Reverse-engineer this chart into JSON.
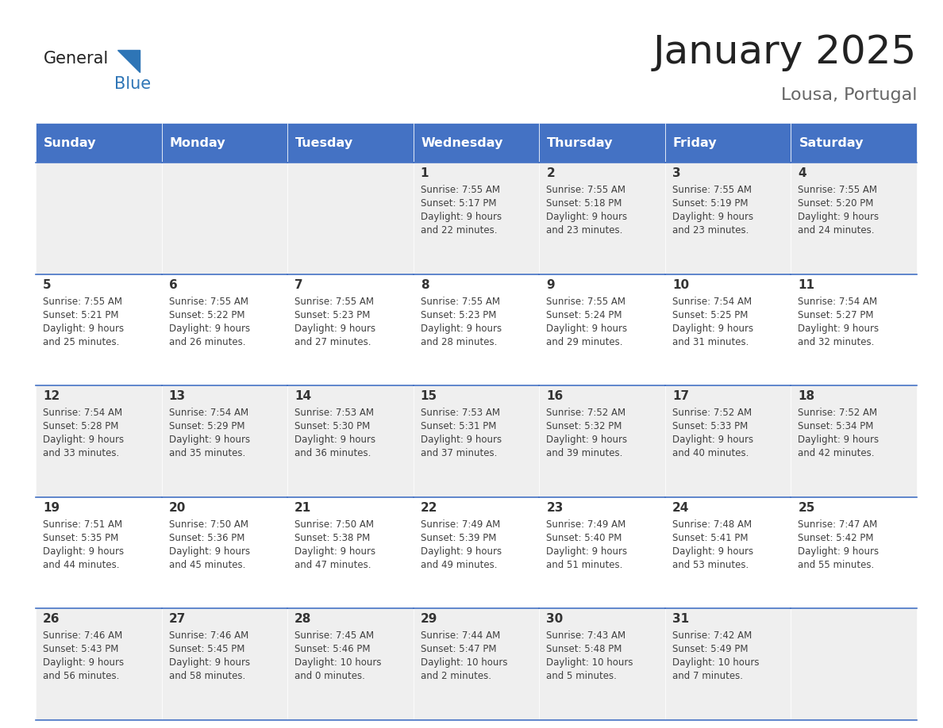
{
  "title": "January 2025",
  "subtitle": "Lousa, Portugal",
  "days_of_week": [
    "Sunday",
    "Monday",
    "Tuesday",
    "Wednesday",
    "Thursday",
    "Friday",
    "Saturday"
  ],
  "header_bg": "#4472C4",
  "header_text": "#FFFFFF",
  "row_bg_even": "#EFEFEF",
  "row_bg_odd": "#FFFFFF",
  "cell_text_color": "#404040",
  "day_num_color": "#333333",
  "border_color": "#4472C4",
  "title_color": "#222222",
  "subtitle_color": "#666666",
  "logo_general_color": "#222222",
  "logo_blue_color": "#2E75B6",
  "weeks": [
    [
      {
        "day": 0,
        "data": null
      },
      {
        "day": 0,
        "data": null
      },
      {
        "day": 0,
        "data": null
      },
      {
        "day": 1,
        "data": {
          "sunrise": "7:55 AM",
          "sunset": "5:17 PM",
          "daylight_h": "9 hours",
          "daylight_m": "and 22 minutes."
        }
      },
      {
        "day": 2,
        "data": {
          "sunrise": "7:55 AM",
          "sunset": "5:18 PM",
          "daylight_h": "9 hours",
          "daylight_m": "and 23 minutes."
        }
      },
      {
        "day": 3,
        "data": {
          "sunrise": "7:55 AM",
          "sunset": "5:19 PM",
          "daylight_h": "9 hours",
          "daylight_m": "and 23 minutes."
        }
      },
      {
        "day": 4,
        "data": {
          "sunrise": "7:55 AM",
          "sunset": "5:20 PM",
          "daylight_h": "9 hours",
          "daylight_m": "and 24 minutes."
        }
      }
    ],
    [
      {
        "day": 5,
        "data": {
          "sunrise": "7:55 AM",
          "sunset": "5:21 PM",
          "daylight_h": "9 hours",
          "daylight_m": "and 25 minutes."
        }
      },
      {
        "day": 6,
        "data": {
          "sunrise": "7:55 AM",
          "sunset": "5:22 PM",
          "daylight_h": "9 hours",
          "daylight_m": "and 26 minutes."
        }
      },
      {
        "day": 7,
        "data": {
          "sunrise": "7:55 AM",
          "sunset": "5:23 PM",
          "daylight_h": "9 hours",
          "daylight_m": "and 27 minutes."
        }
      },
      {
        "day": 8,
        "data": {
          "sunrise": "7:55 AM",
          "sunset": "5:23 PM",
          "daylight_h": "9 hours",
          "daylight_m": "and 28 minutes."
        }
      },
      {
        "day": 9,
        "data": {
          "sunrise": "7:55 AM",
          "sunset": "5:24 PM",
          "daylight_h": "9 hours",
          "daylight_m": "and 29 minutes."
        }
      },
      {
        "day": 10,
        "data": {
          "sunrise": "7:54 AM",
          "sunset": "5:25 PM",
          "daylight_h": "9 hours",
          "daylight_m": "and 31 minutes."
        }
      },
      {
        "day": 11,
        "data": {
          "sunrise": "7:54 AM",
          "sunset": "5:27 PM",
          "daylight_h": "9 hours",
          "daylight_m": "and 32 minutes."
        }
      }
    ],
    [
      {
        "day": 12,
        "data": {
          "sunrise": "7:54 AM",
          "sunset": "5:28 PM",
          "daylight_h": "9 hours",
          "daylight_m": "and 33 minutes."
        }
      },
      {
        "day": 13,
        "data": {
          "sunrise": "7:54 AM",
          "sunset": "5:29 PM",
          "daylight_h": "9 hours",
          "daylight_m": "and 35 minutes."
        }
      },
      {
        "day": 14,
        "data": {
          "sunrise": "7:53 AM",
          "sunset": "5:30 PM",
          "daylight_h": "9 hours",
          "daylight_m": "and 36 minutes."
        }
      },
      {
        "day": 15,
        "data": {
          "sunrise": "7:53 AM",
          "sunset": "5:31 PM",
          "daylight_h": "9 hours",
          "daylight_m": "and 37 minutes."
        }
      },
      {
        "day": 16,
        "data": {
          "sunrise": "7:52 AM",
          "sunset": "5:32 PM",
          "daylight_h": "9 hours",
          "daylight_m": "and 39 minutes."
        }
      },
      {
        "day": 17,
        "data": {
          "sunrise": "7:52 AM",
          "sunset": "5:33 PM",
          "daylight_h": "9 hours",
          "daylight_m": "and 40 minutes."
        }
      },
      {
        "day": 18,
        "data": {
          "sunrise": "7:52 AM",
          "sunset": "5:34 PM",
          "daylight_h": "9 hours",
          "daylight_m": "and 42 minutes."
        }
      }
    ],
    [
      {
        "day": 19,
        "data": {
          "sunrise": "7:51 AM",
          "sunset": "5:35 PM",
          "daylight_h": "9 hours",
          "daylight_m": "and 44 minutes."
        }
      },
      {
        "day": 20,
        "data": {
          "sunrise": "7:50 AM",
          "sunset": "5:36 PM",
          "daylight_h": "9 hours",
          "daylight_m": "and 45 minutes."
        }
      },
      {
        "day": 21,
        "data": {
          "sunrise": "7:50 AM",
          "sunset": "5:38 PM",
          "daylight_h": "9 hours",
          "daylight_m": "and 47 minutes."
        }
      },
      {
        "day": 22,
        "data": {
          "sunrise": "7:49 AM",
          "sunset": "5:39 PM",
          "daylight_h": "9 hours",
          "daylight_m": "and 49 minutes."
        }
      },
      {
        "day": 23,
        "data": {
          "sunrise": "7:49 AM",
          "sunset": "5:40 PM",
          "daylight_h": "9 hours",
          "daylight_m": "and 51 minutes."
        }
      },
      {
        "day": 24,
        "data": {
          "sunrise": "7:48 AM",
          "sunset": "5:41 PM",
          "daylight_h": "9 hours",
          "daylight_m": "and 53 minutes."
        }
      },
      {
        "day": 25,
        "data": {
          "sunrise": "7:47 AM",
          "sunset": "5:42 PM",
          "daylight_h": "9 hours",
          "daylight_m": "and 55 minutes."
        }
      }
    ],
    [
      {
        "day": 26,
        "data": {
          "sunrise": "7:46 AM",
          "sunset": "5:43 PM",
          "daylight_h": "9 hours",
          "daylight_m": "and 56 minutes."
        }
      },
      {
        "day": 27,
        "data": {
          "sunrise": "7:46 AM",
          "sunset": "5:45 PM",
          "daylight_h": "9 hours",
          "daylight_m": "and 58 minutes."
        }
      },
      {
        "day": 28,
        "data": {
          "sunrise": "7:45 AM",
          "sunset": "5:46 PM",
          "daylight_h": "10 hours",
          "daylight_m": "and 0 minutes."
        }
      },
      {
        "day": 29,
        "data": {
          "sunrise": "7:44 AM",
          "sunset": "5:47 PM",
          "daylight_h": "10 hours",
          "daylight_m": "and 2 minutes."
        }
      },
      {
        "day": 30,
        "data": {
          "sunrise": "7:43 AM",
          "sunset": "5:48 PM",
          "daylight_h": "10 hours",
          "daylight_m": "and 5 minutes."
        }
      },
      {
        "day": 31,
        "data": {
          "sunrise": "7:42 AM",
          "sunset": "5:49 PM",
          "daylight_h": "10 hours",
          "daylight_m": "and 7 minutes."
        }
      },
      {
        "day": 0,
        "data": null
      }
    ]
  ],
  "figsize": [
    11.88,
    9.18
  ],
  "dpi": 100
}
